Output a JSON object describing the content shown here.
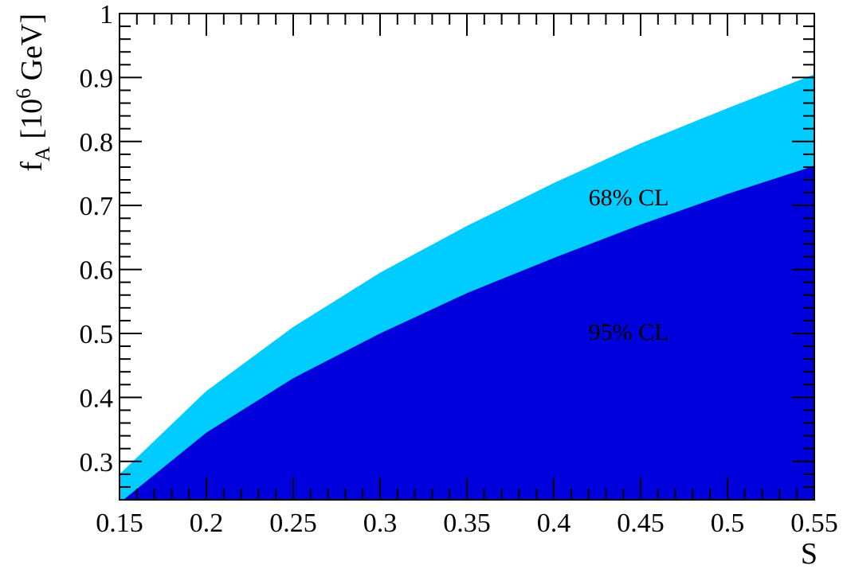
{
  "chart_data": {
    "type": "area",
    "title": "",
    "xlabel": "S",
    "ylabel": {
      "base": "f",
      "sub": "A",
      "open": " [10",
      "sup": "6",
      "close": " GeV]"
    },
    "xlim": [
      0.15,
      0.55
    ],
    "ylim": [
      0.24,
      1.0
    ],
    "grid": false,
    "x_ticks": [
      0.15,
      0.2,
      0.25,
      0.3,
      0.35,
      0.4,
      0.45,
      0.5,
      0.55
    ],
    "x_tick_labels": [
      "0.15",
      "0.2",
      "0.25",
      "0.3",
      "0.35",
      "0.4",
      "0.45",
      "0.5",
      "0.55"
    ],
    "y_ticks": [
      0.3,
      0.4,
      0.5,
      0.6,
      0.7,
      0.8,
      0.9,
      1.0
    ],
    "y_tick_labels": [
      "0.3",
      "0.4",
      "0.5",
      "0.6",
      "0.7",
      "0.8",
      "0.9",
      "1"
    ],
    "x": [
      0.15,
      0.2,
      0.25,
      0.3,
      0.35,
      0.4,
      0.45,
      0.5,
      0.55
    ],
    "series": [
      {
        "name": "68% CL",
        "color": "#00ccff",
        "upper": [
          0.28,
          0.41,
          0.51,
          0.595,
          0.668,
          0.735,
          0.797,
          0.852,
          0.905
        ],
        "label_pos": {
          "x": 0.42,
          "y": 0.7
        },
        "label_color": "#000000"
      },
      {
        "name": "95% CL",
        "color": "#0000dd",
        "upper": [
          0.235,
          0.345,
          0.43,
          0.5,
          0.563,
          0.618,
          0.67,
          0.718,
          0.762
        ],
        "label_pos": {
          "x": 0.42,
          "y": 0.49
        },
        "label_color": "#ffffff"
      }
    ]
  }
}
